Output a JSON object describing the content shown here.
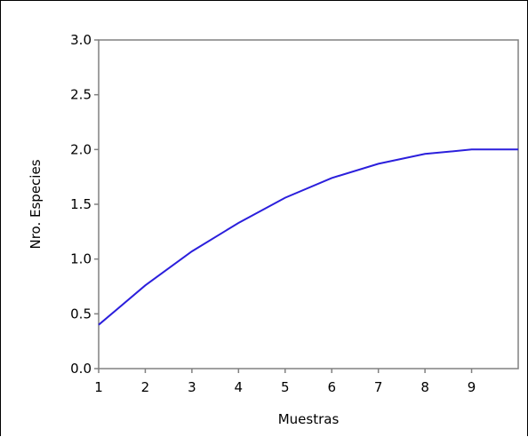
{
  "chart_data": {
    "type": "line",
    "xlabel": "Muestras",
    "ylabel": "Nro. Especies",
    "xlim": [
      1,
      10
    ],
    "ylim": [
      0,
      3.0
    ],
    "x_ticks": [
      "1",
      "2",
      "3",
      "4",
      "5",
      "6",
      "7",
      "8",
      "9"
    ],
    "y_ticks": [
      "0.0",
      "0.5",
      "1.0",
      "1.5",
      "2.0",
      "2.5",
      "3.0"
    ],
    "grid": false,
    "legend": "none",
    "series": [
      {
        "color": "#2b1fdc",
        "x": [
          1,
          2,
          3,
          4,
          5,
          6,
          7,
          8,
          9,
          10
        ],
        "values": [
          0.4,
          0.76,
          1.07,
          1.33,
          1.56,
          1.74,
          1.87,
          1.96,
          2.0,
          2.0
        ]
      }
    ]
  }
}
